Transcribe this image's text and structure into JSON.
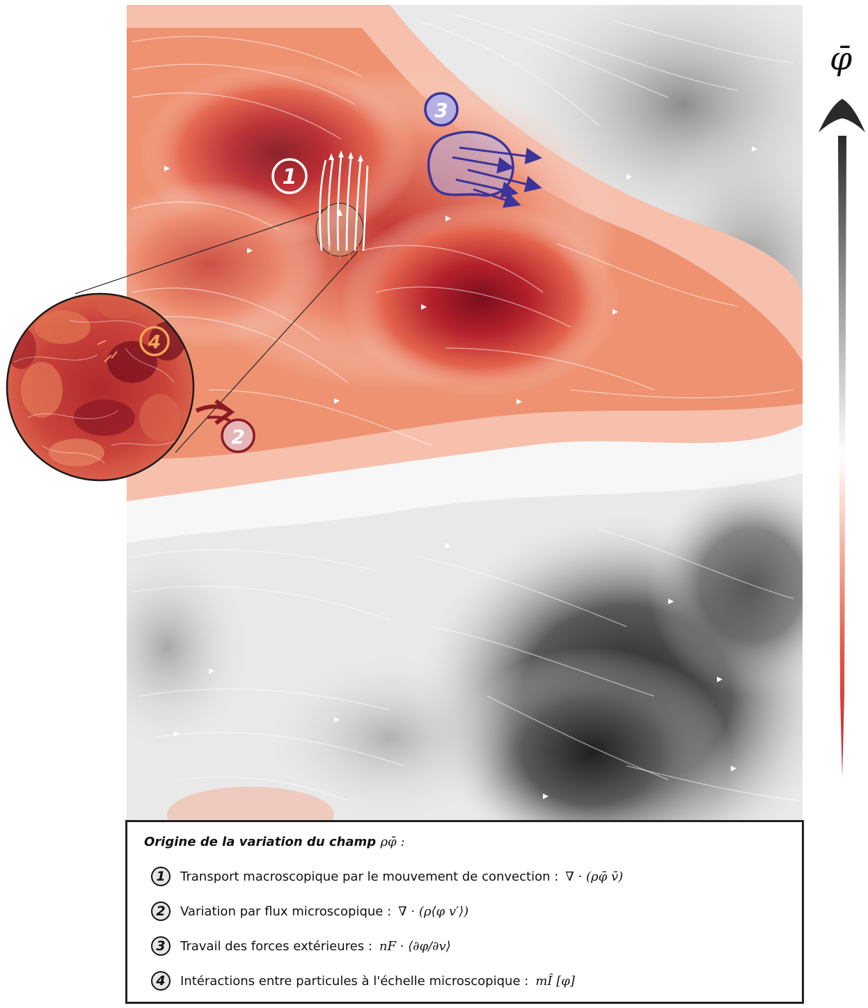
{
  "colorbar": {
    "label": "φ̄"
  },
  "markers": [
    {
      "id": "1",
      "color": "#ffffff"
    },
    {
      "id": "2",
      "color": "#8b1a23"
    },
    {
      "id": "3",
      "color": "#3b3399"
    },
    {
      "id": "4",
      "color": "#f2a65a"
    }
  ],
  "legend": {
    "title": "Origine de la variation du champ",
    "title_math": "ρφ̄ :",
    "items": [
      {
        "num": "1",
        "text": "Transport macroscopique par le mouvement de convection :",
        "formula": "∇ · (ρφ̄ v̄)"
      },
      {
        "num": "2",
        "text": "Variation par flux microscopique :",
        "formula": "∇ · (ρ⟨φ v′⟩)"
      },
      {
        "num": "3",
        "text": "Travail des forces extérieures :",
        "formula": "nF · ⟨∂φ/∂v⟩"
      },
      {
        "num": "4",
        "text": "Intéractions entre particules à l'échelle microscopique :",
        "formula": "mÎ [φ]"
      }
    ]
  },
  "colors": {
    "red_dark": "#7a0d1e",
    "red_mid": "#d8413a",
    "red_light": "#f4b39a",
    "grey_dark": "#2a2a2a",
    "grey_light": "#e8e8e8",
    "blue": "#3b3399"
  }
}
